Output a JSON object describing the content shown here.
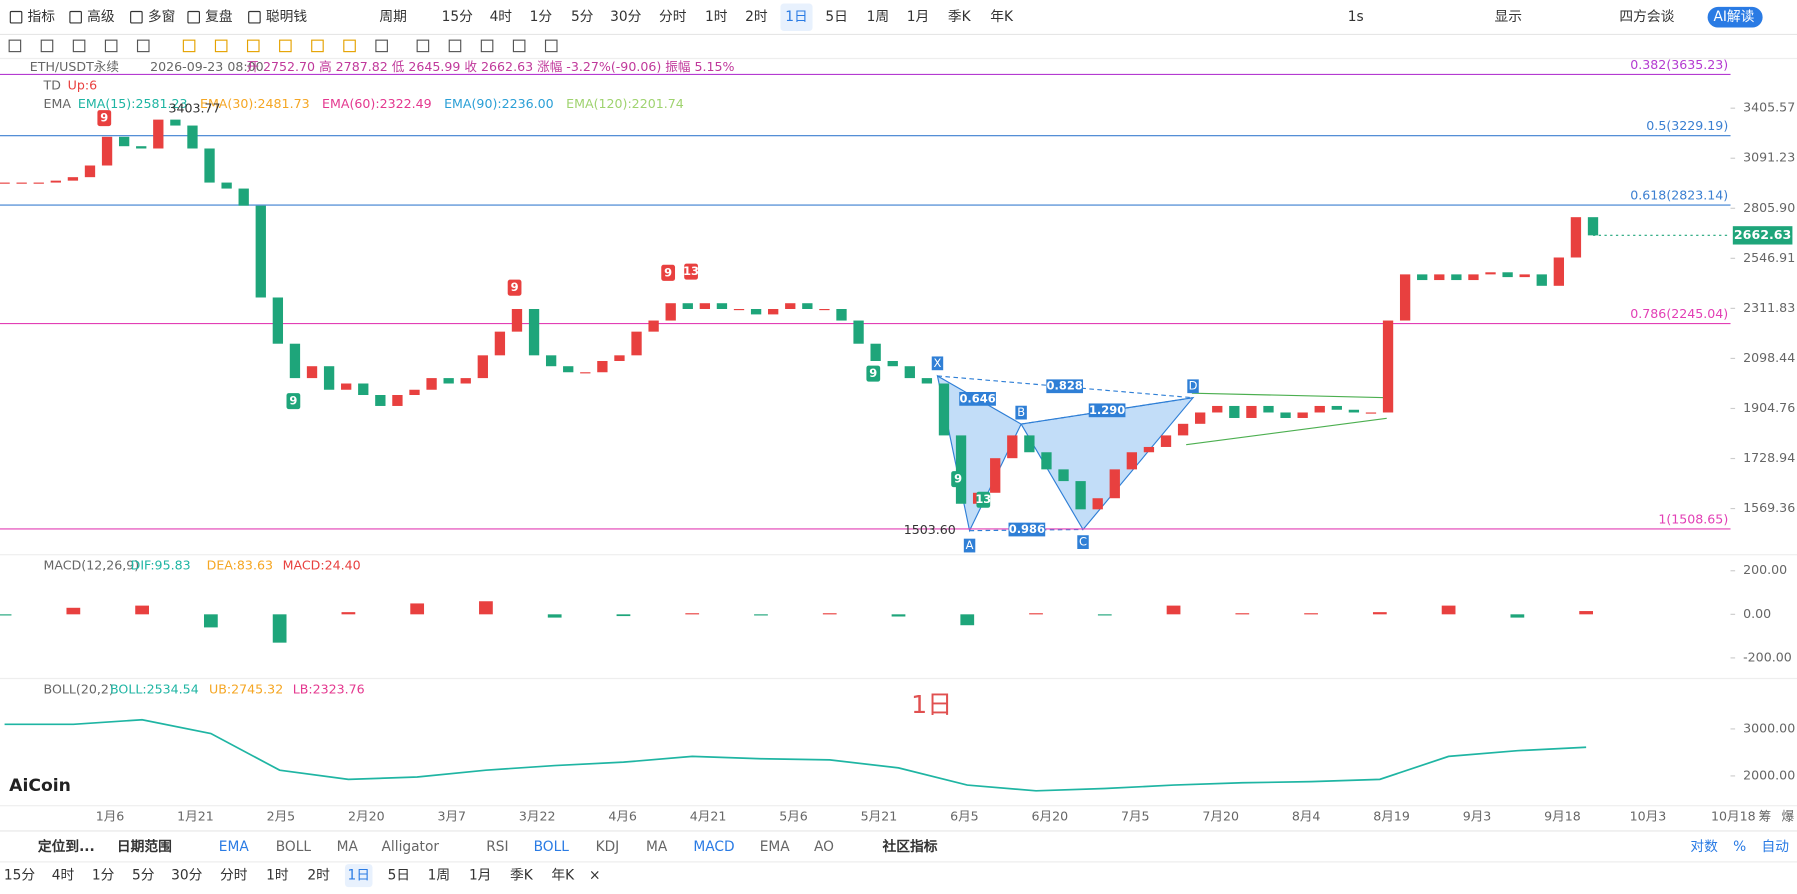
{
  "toolbar": {
    "left": [
      "指标",
      "高级",
      "多窗",
      "复盘",
      "聪明钱"
    ],
    "period_label": "周期",
    "periods": [
      "15分",
      "4时",
      "1分",
      "5分",
      "30分",
      "分时",
      "1时",
      "2时",
      "1日",
      "5日",
      "1周",
      "1月",
      "季K",
      "年K"
    ],
    "active_period": 8,
    "right": [
      "1s",
      "显示",
      "四方会谈",
      "AI解读"
    ],
    "close": "×"
  },
  "info": {
    "symbol": "ETH/USDT永续",
    "time": "2026-09-23 08:00",
    "ohlc": "开 2752.70  高 2787.82  低 2645.99  收 2662.63  涨幅 -3.27%(-90.06)  振幅 5.15%"
  },
  "td": {
    "name": "TD",
    "value": "Up:6",
    "marks": [
      "9",
      "9",
      "9",
      "9",
      "13",
      "9",
      "9",
      "13"
    ]
  },
  "ema": {
    "name": "EMA",
    "items": [
      {
        "text": "EMA(15):2581.23",
        "color": "#1fb5a3"
      },
      {
        "text": "EMA(30):2481.73",
        "color": "#f5a623"
      },
      {
        "text": "EMA(60):2322.49",
        "color": "#e4388f"
      },
      {
        "text": "EMA(90):2236.00",
        "color": "#2a9fd6"
      },
      {
        "text": "EMA(120):2201.74",
        "color": "#9fd36f"
      }
    ]
  },
  "chart_data": {
    "type": "candlestick",
    "log_scale": true,
    "up_color": "#e8403f",
    "down_color": "#1ea57a",
    "series": [
      {
        "name": "ETH/USDT永续",
        "values": [
          2949,
          2949,
          2949,
          2960,
          2980,
          3048,
          3222,
          3164,
          3150,
          3331,
          3293,
          3150,
          2949,
          2915,
          2820,
          2361,
          2159,
          2020,
          2067,
          1975,
          1999,
          1955,
          1914,
          1955,
          1975,
          2020,
          1999,
          2020,
          2111,
          2210,
          2309,
          2111,
          2067,
          2043,
          2043,
          2088,
          2111,
          2210,
          2258,
          2335,
          2309,
          2335,
          2309,
          2309,
          2285,
          2309,
          2335,
          2309,
          2309,
          2258,
          2159,
          2088,
          2067,
          2020,
          1999,
          1808,
          1584,
          1618,
          1730,
          1808,
          1750,
          1693,
          1655,
          1567,
          1601,
          1693,
          1750,
          1768,
          1808,
          1849,
          1890,
          1914,
          1870,
          1914,
          1890,
          1870,
          1890,
          1914,
          1900,
          1890,
          1890,
          2258,
          2469,
          2442,
          2469,
          2442,
          2469,
          2479,
          2456,
          2469,
          2415,
          2551,
          2758,
          2662.63
        ]
      }
    ],
    "ylim": [
      1448,
      3741
    ],
    "yticks": [
      3405.57,
      3091.23,
      {
        "value": 2805.9,
        "label": "2805.90"
      },
      2546.91,
      2311.83,
      2098.44,
      1904.76,
      1728.94,
      1569.36
    ],
    "fib": [
      {
        "label": "0.382(3635.23)",
        "value": 3635.23,
        "color": "#b43bd1"
      },
      {
        "label": "0.5(3229.19)",
        "value": 3229.19,
        "color": "#3b7fd1"
      },
      {
        "label": "0.618(2823.14)",
        "value": 2823.14,
        "color": "#3b7fd1"
      },
      {
        "label": "0.786(2245.04)",
        "value": 2245.04,
        "color": "#e23fb5"
      },
      {
        "label": "1(1508.65)",
        "value": 1508.65,
        "color": "#e23fb5"
      }
    ],
    "annotations": {
      "high": "3403.77",
      "low": "1503.60"
    },
    "pattern": {
      "points": [
        "X",
        "A",
        "B",
        "C",
        "D"
      ],
      "ratios": [
        "0.646",
        "0.828",
        "1.290",
        "0.986"
      ]
    },
    "time_labels": [
      "1月6",
      "1月21",
      "2月5",
      "2月20",
      "3月7",
      "3月22",
      "4月6",
      "4月21",
      "5月6",
      "5月21",
      "6月5",
      "6月20",
      "7月5",
      "7月20",
      "8月4",
      "8月19",
      "9月3",
      "9月18",
      "10月3",
      "10月18"
    ],
    "axis_icons": [
      "筹",
      "爆"
    ]
  },
  "macd": {
    "type": "bar",
    "name": "MACD(12,26,9)",
    "items": [
      {
        "text": "DIF:95.83",
        "color": "#1fb5a3"
      },
      {
        "text": "DEA:83.63",
        "color": "#f5a623"
      },
      {
        "text": "MACD:24.40",
        "color": "#e8403f"
      }
    ],
    "values": [
      -5,
      30,
      40,
      -60,
      -130,
      10,
      50,
      60,
      -15,
      -8,
      5,
      -5,
      5,
      -10,
      -50,
      5,
      -5,
      40,
      5,
      5,
      10,
      40,
      -15,
      15
    ],
    "ylim": [
      -284,
      263
    ],
    "yticks": [
      {
        "value": 200,
        "label": "200.00"
      },
      {
        "value": 0,
        "label": "0.00"
      },
      {
        "value": -200,
        "label": "-200.00"
      }
    ]
  },
  "boll": {
    "type": "line",
    "name": "BOLL(20,2)",
    "items": [
      {
        "text": "BOLL:2534.54",
        "color": "#1fb5a3"
      },
      {
        "text": "UB:2745.32",
        "color": "#f5a623"
      },
      {
        "text": "LB:2323.76",
        "color": "#e4388f"
      }
    ],
    "values": [
      3098,
      3098,
      3195,
      2902,
      2122,
      1927,
      1976,
      2122,
      2220,
      2293,
      2415,
      2366,
      2341,
      2171,
      1805,
      1683,
      1732,
      1805,
      1854,
      1878,
      1927,
      2415,
      2537,
      2610
    ],
    "color": "#1fb5a3",
    "ylim": [
      1439,
      4024
    ],
    "yticks": [
      {
        "value": 3000,
        "label": "3000.00"
      },
      {
        "value": 2000,
        "label": "2000.00"
      }
    ]
  },
  "watermark": "1日",
  "brand": "AiCoin",
  "bottom": {
    "locate": "定位到...",
    "range": "日期范围",
    "group1": [
      "EMA",
      "BOLL",
      "MA",
      "Alligator"
    ],
    "group2": [
      "RSI",
      "BOLL",
      "KDJ",
      "MA",
      "MACD",
      "EMA",
      "AO"
    ],
    "community": "社区指标",
    "right": [
      "对数",
      "%",
      "自动"
    ]
  }
}
